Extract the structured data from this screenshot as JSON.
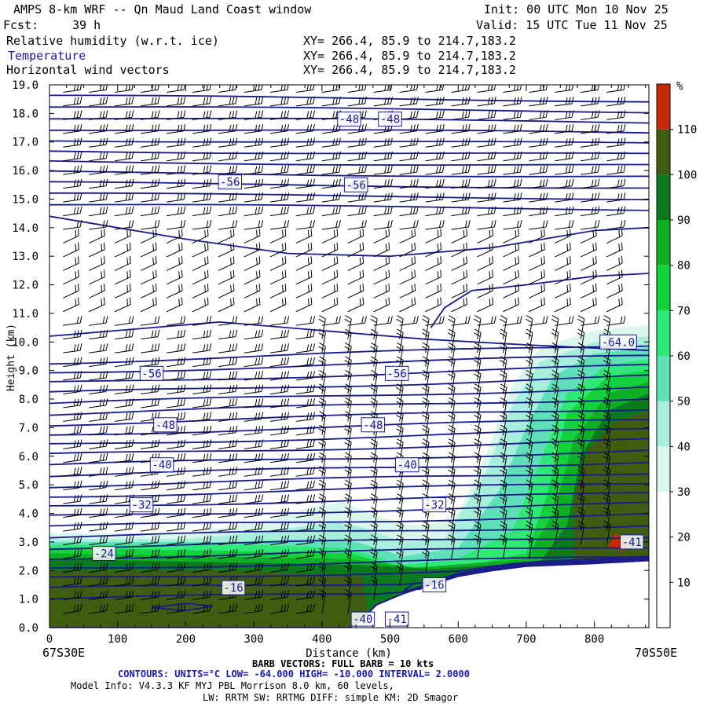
{
  "header": {
    "title": "AMPS 8-km WRF -- Qn Maud Land Coast window",
    "fcst_label": "Fcst:",
    "fcst_value": "39 h",
    "init": "Init: 00 UTC Mon 10 Nov 25",
    "valid": "Valid: 15 UTC Tue 11 Nov 25",
    "fields": [
      {
        "name": "Relative humidity (w.r.t. ice)",
        "xy": "XY= 266.4, 85.9 to 214.7,183.2"
      },
      {
        "name": "Temperature",
        "xy": "XY= 266.4, 85.9 to 214.7,183.2"
      },
      {
        "name": "Horizontal wind vectors",
        "xy": "XY= 266.4, 85.9 to 214.7,183.2"
      }
    ]
  },
  "footer": {
    "left_location": "67S30E",
    "right_location": "70S50E",
    "barb_note": "BARB VECTORS: FULL BARB = 10 kts",
    "contours_note": "CONTOURS: UNITS=°C LOW= -64.000 HIGH= -10.000 INTERVAL= 2.0000",
    "model_info_1": "Model Info: V4.3.3 KF MYJ PBL Morrison 8.0 km, 60 levels,",
    "model_info_2": "LW: RRTM SW: RRTMG DIFF: simple KM: 2D Smagor"
  },
  "colors": {
    "contour": "#1a1a8c",
    "barb": "#000000",
    "terrain_fill": "#ffffff"
  },
  "chart_data": {
    "type": "heatmap",
    "title": "Relative humidity (w.r.t. ice), Temperature, Horizontal wind vectors",
    "xlabel": "Distance (km)",
    "ylabel": "Height (km)",
    "xlim": [
      0,
      880
    ],
    "ylim": [
      0,
      19
    ],
    "x_ticks": [
      0,
      100,
      200,
      300,
      400,
      500,
      600,
      700,
      800
    ],
    "y_ticks": [
      0.0,
      1.0,
      2.0,
      3.0,
      4.0,
      5.0,
      6.0,
      7.0,
      8.0,
      9.0,
      10.0,
      11.0,
      12.0,
      13.0,
      14.0,
      15.0,
      16.0,
      17.0,
      18.0,
      19.0
    ],
    "colorbar": {
      "unit": "%",
      "labels": [
        10,
        20,
        30,
        40,
        50,
        60,
        70,
        80,
        90,
        100,
        110
      ],
      "bins": [
        {
          "from": 0,
          "to": 30,
          "color": "#ffffff"
        },
        {
          "from": 30,
          "to": 40,
          "color": "#d9f7ec"
        },
        {
          "from": 40,
          "to": 50,
          "color": "#a8eedc"
        },
        {
          "from": 50,
          "to": 60,
          "color": "#5fe0b8"
        },
        {
          "from": 60,
          "to": 70,
          "color": "#30e878"
        },
        {
          "from": 70,
          "to": 80,
          "color": "#14d23c"
        },
        {
          "from": 80,
          "to": 90,
          "color": "#10b026"
        },
        {
          "from": 90,
          "to": 100,
          "color": "#0d7a1e"
        },
        {
          "from": 100,
          "to": 110,
          "color": "#3f5c10"
        },
        {
          "from": 110,
          "to": 120,
          "color": "#c42a0a"
        }
      ]
    },
    "terrain_profile": [
      [
        0,
        0
      ],
      [
        300,
        0
      ],
      [
        440,
        0
      ],
      [
        455,
        0.2
      ],
      [
        480,
        0.8
      ],
      [
        520,
        1.2
      ],
      [
        560,
        1.5
      ],
      [
        600,
        1.8
      ],
      [
        650,
        2.0
      ],
      [
        700,
        2.15
      ],
      [
        750,
        2.2
      ],
      [
        800,
        2.25
      ],
      [
        880,
        2.35
      ]
    ],
    "rh_regions": [
      {
        "rh": 35,
        "polygon": [
          [
            0,
            0
          ],
          [
            0,
            3.3
          ],
          [
            200,
            3.3
          ],
          [
            330,
            3.8
          ],
          [
            380,
            4.2
          ],
          [
            430,
            4.4
          ],
          [
            470,
            4.0
          ],
          [
            520,
            3.6
          ],
          [
            560,
            3.6
          ],
          [
            600,
            4.0
          ],
          [
            640,
            6.0
          ],
          [
            680,
            8.5
          ],
          [
            720,
            9.8
          ],
          [
            800,
            10.4
          ],
          [
            880,
            10.6
          ],
          [
            880,
            0
          ]
        ]
      },
      {
        "rh": 45,
        "polygon": [
          [
            0,
            0
          ],
          [
            0,
            3.1
          ],
          [
            200,
            3.1
          ],
          [
            330,
            3.4
          ],
          [
            420,
            3.7
          ],
          [
            460,
            3.5
          ],
          [
            520,
            3.0
          ],
          [
            580,
            3.1
          ],
          [
            640,
            5.4
          ],
          [
            680,
            7.8
          ],
          [
            720,
            9.3
          ],
          [
            800,
            10.0
          ],
          [
            880,
            10.2
          ],
          [
            880,
            0
          ]
        ]
      },
      {
        "rh": 55,
        "polygon": [
          [
            0,
            0
          ],
          [
            0,
            3.0
          ],
          [
            250,
            3.0
          ],
          [
            380,
            3.1
          ],
          [
            450,
            3.0
          ],
          [
            520,
            2.5
          ],
          [
            600,
            2.8
          ],
          [
            660,
            4.8
          ],
          [
            700,
            7.0
          ],
          [
            740,
            8.8
          ],
          [
            800,
            9.6
          ],
          [
            880,
            9.8
          ],
          [
            880,
            0
          ]
        ]
      },
      {
        "rh": 65,
        "polygon": [
          [
            0,
            0
          ],
          [
            0,
            2.9
          ],
          [
            300,
            2.9
          ],
          [
            430,
            2.8
          ],
          [
            520,
            2.2
          ],
          [
            600,
            2.4
          ],
          [
            680,
            3.4
          ],
          [
            720,
            5.8
          ],
          [
            760,
            8.2
          ],
          [
            820,
            9.2
          ],
          [
            880,
            9.4
          ],
          [
            880,
            0
          ]
        ]
      },
      {
        "rh": 75,
        "polygon": [
          [
            0,
            0
          ],
          [
            0,
            2.8
          ],
          [
            440,
            2.6
          ],
          [
            520,
            2.1
          ],
          [
            620,
            2.2
          ],
          [
            700,
            2.6
          ],
          [
            730,
            4.6
          ],
          [
            760,
            7.5
          ],
          [
            820,
            8.8
          ],
          [
            880,
            9.0
          ],
          [
            880,
            0
          ]
        ]
      },
      {
        "rh": 85,
        "polygon": [
          [
            0,
            0
          ],
          [
            0,
            2.6
          ],
          [
            440,
            2.4
          ],
          [
            540,
            2.1
          ],
          [
            700,
            2.4
          ],
          [
            740,
            4.0
          ],
          [
            770,
            6.6
          ],
          [
            820,
            8.2
          ],
          [
            880,
            8.6
          ],
          [
            880,
            0
          ]
        ]
      },
      {
        "rh": 95,
        "polygon": [
          [
            0,
            0
          ],
          [
            0,
            2.4
          ],
          [
            450,
            2.2
          ],
          [
            560,
            2.05
          ],
          [
            720,
            2.3
          ],
          [
            760,
            3.6
          ],
          [
            780,
            6.0
          ],
          [
            820,
            7.6
          ],
          [
            880,
            8.2
          ],
          [
            880,
            0
          ]
        ]
      },
      {
        "rh": 105,
        "polygon": [
          [
            0,
            1.0
          ],
          [
            0,
            2.0
          ],
          [
            250,
            2.0
          ],
          [
            460,
            1.8
          ],
          [
            470,
            0
          ],
          [
            0,
            0
          ]
        ]
      },
      {
        "rh": 105,
        "polygon": [
          [
            770,
            2.3
          ],
          [
            770,
            4.5
          ],
          [
            790,
            6.2
          ],
          [
            830,
            7.2
          ],
          [
            880,
            7.6
          ],
          [
            880,
            2.3
          ]
        ]
      },
      {
        "rh": 115,
        "polygon": [
          [
            820,
            2.8
          ],
          [
            830,
            3.3
          ],
          [
            850,
            3.1
          ],
          [
            845,
            2.7
          ]
        ]
      }
    ],
    "temperature_contour_labels": [
      {
        "label": "-48",
        "x": 440,
        "y": 17.8
      },
      {
        "label": "-48",
        "x": 500,
        "y": 17.8
      },
      {
        "label": "-56",
        "x": 265,
        "y": 15.6
      },
      {
        "label": "-56",
        "x": 450,
        "y": 15.5
      },
      {
        "label": "-64.0",
        "x": 835,
        "y": 10.0
      },
      {
        "label": "-56",
        "x": 150,
        "y": 8.9
      },
      {
        "label": "-56",
        "x": 510,
        "y": 8.9
      },
      {
        "label": "-48",
        "x": 170,
        "y": 7.1
      },
      {
        "label": "-48",
        "x": 475,
        "y": 7.1
      },
      {
        "label": "-40",
        "x": 165,
        "y": 5.7
      },
      {
        "label": "-40",
        "x": 525,
        "y": 5.7
      },
      {
        "label": "-32",
        "x": 135,
        "y": 4.3
      },
      {
        "label": "-32",
        "x": 565,
        "y": 4.3
      },
      {
        "label": "-24",
        "x": 80,
        "y": 2.6
      },
      {
        "label": "-16",
        "x": 270,
        "y": 1.4
      },
      {
        "label": "-16",
        "x": 565,
        "y": 1.5
      },
      {
        "label": "-41",
        "x": 855,
        "y": 3.0
      },
      {
        "label": "-40",
        "x": 460,
        "y": 0.3
      },
      {
        "label": "-41",
        "x": 510,
        "y": 0.3
      }
    ]
  }
}
